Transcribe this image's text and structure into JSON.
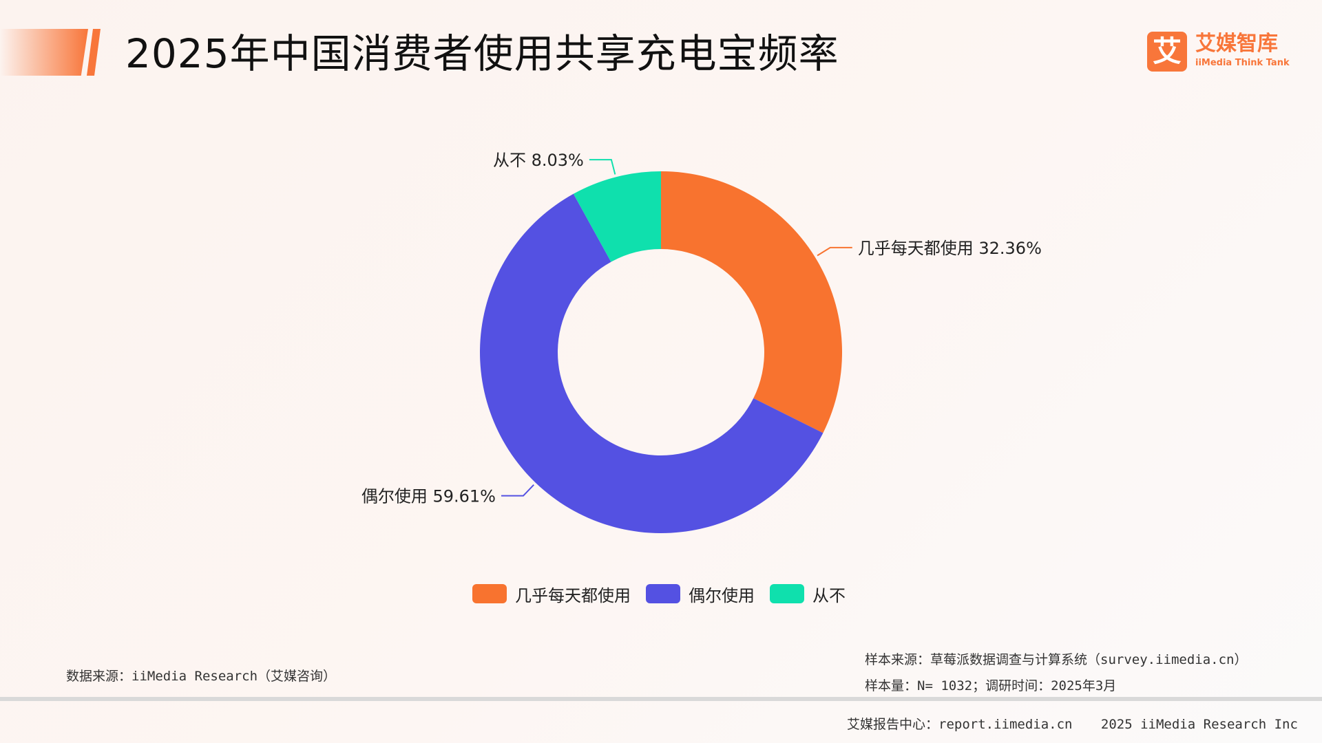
{
  "header": {
    "title": "2025年中国消费者使用共享充电宝频率",
    "accent_color": "#f8763a"
  },
  "logo": {
    "mark": "艾",
    "name_cn": "艾媒智库",
    "name_en": "iiMedia Think Tank"
  },
  "chart_data": {
    "type": "pie",
    "donut": true,
    "title": "",
    "series": [
      {
        "name": "几乎每天都使用",
        "value": 32.36,
        "label": "几乎每天都使用 32.36%",
        "color": "#f8732f"
      },
      {
        "name": "偶尔使用",
        "value": 59.61,
        "label": "偶尔使用 59.61%",
        "color": "#5451e2"
      },
      {
        "name": "从不",
        "value": 8.03,
        "label": "从不 8.03%",
        "color": "#0fe0ad"
      }
    ],
    "legend_position": "bottom-center"
  },
  "footer": {
    "data_source": "数据来源：iiMedia Research（艾媒咨询）",
    "sample_source": "样本来源：草莓派数据调查与计算系统（survey.iimedia.cn）",
    "sample_size": "样本量：N= 1032；调研时间：2025年3月",
    "report_center": "艾媒报告中心：report.iimedia.cn",
    "copyright": "2025 iiMedia Research Inc"
  }
}
